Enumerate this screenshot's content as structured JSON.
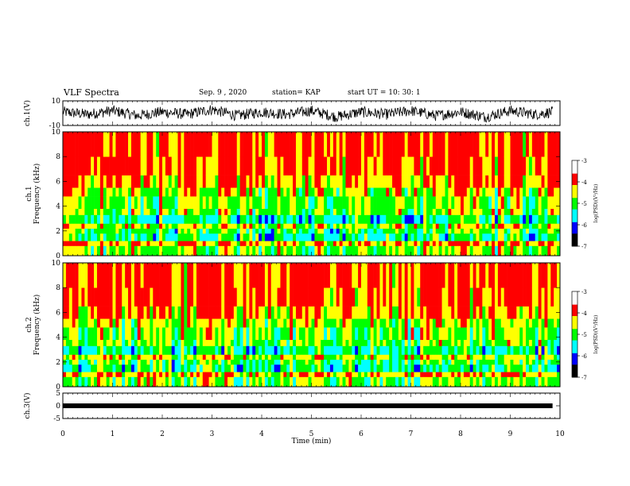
{
  "header": {
    "title": "VLF Spectra",
    "date": "Sep. 9  , 2020",
    "station": "station= KAP",
    "start": "start  UT =   10: 30: 1"
  },
  "colors": {
    "spectrogram_scale": [
      "#000000",
      "#0000ff",
      "#00ffff",
      "#00ff00",
      "#ffff00",
      "#ff0000",
      "#ffffff"
    ]
  },
  "chart_data": [
    {
      "type": "line",
      "panel": "ch1-waveform",
      "ylabel": "ch.1(V)",
      "ylim": [
        -10,
        10
      ],
      "yticks": [
        "10",
        "-10"
      ],
      "xlim": [
        0,
        10
      ],
      "x": [
        0,
        0.5,
        1,
        1.5,
        2,
        2.5,
        3,
        3.5,
        4,
        4.5,
        5,
        5.5,
        6,
        6.5,
        7,
        7.5,
        8,
        8.5,
        9,
        9.5,
        9.85
      ],
      "y": [
        1,
        -1,
        2,
        -2,
        1,
        -1,
        3,
        -2,
        1,
        -1,
        2,
        -3,
        1,
        -1,
        2,
        -2,
        1,
        -3,
        2,
        -1,
        1
      ]
    },
    {
      "type": "heatmap",
      "panel": "ch1-spectrogram",
      "ylabel_line1": "ch.1",
      "ylabel_line2": "Frequency (kHz)",
      "ylim": [
        0,
        10
      ],
      "yticks": [
        "0",
        "2",
        "4",
        "6",
        "8",
        "10"
      ],
      "xlim": [
        0,
        10
      ],
      "colorbar": {
        "label": "log(PSD)(V²/Hz)",
        "range": [
          -7,
          -3
        ],
        "ticks": [
          "-3",
          "-4",
          "-5",
          "-6",
          "-7"
        ]
      }
    },
    {
      "type": "heatmap",
      "panel": "ch2-spectrogram",
      "ylabel_line1": "ch.2",
      "ylabel_line2": "Frequency (kHz)",
      "ylim": [
        0,
        10
      ],
      "yticks": [
        "0",
        "2",
        "4",
        "6",
        "8",
        "10"
      ],
      "xlim": [
        0,
        10
      ],
      "colorbar": {
        "label": "log(PSD)(V²/Hz)",
        "range": [
          -7,
          -3
        ],
        "ticks": [
          "-3",
          "-4",
          "-5",
          "-6",
          "-7"
        ]
      }
    },
    {
      "type": "line",
      "panel": "ch3-waveform",
      "ylabel": "ch.3(V)",
      "ylim": [
        -5,
        5
      ],
      "yticks": [
        "5",
        "0",
        "-5"
      ],
      "xlim": [
        0,
        10
      ],
      "x": [
        0,
        9.85
      ],
      "y": [
        0,
        0
      ]
    },
    {
      "type": "axis",
      "panel": "time-axis",
      "xlabel": "Time (min)",
      "xlim": [
        0,
        10
      ],
      "xticks": [
        "0",
        "1",
        "2",
        "3",
        "4",
        "5",
        "6",
        "7",
        "8",
        "9",
        "10"
      ]
    }
  ]
}
